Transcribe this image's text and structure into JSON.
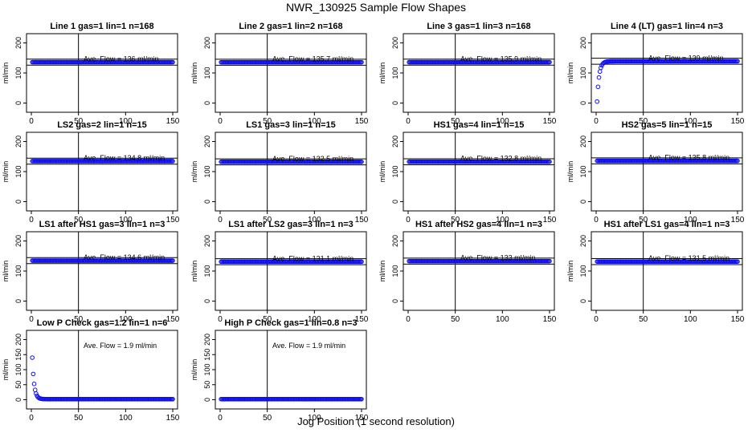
{
  "figure_title": "NWR_130925  Sample Flow Shapes",
  "xlabel_common": "Jog Position (1 second resolution)",
  "colors": {
    "points": "#1010ee",
    "frame": "#000000"
  },
  "chart_data": [
    {
      "type": "scatter",
      "title": "Line 1 gas=1 lin=1 n=168",
      "ylabel": "ml/min",
      "annotation": "Ave. Flow = 136  ml/min",
      "xlim": [
        0,
        150
      ],
      "ylim": [
        0,
        200
      ],
      "xticks": [
        "0",
        "50",
        "100",
        "150"
      ],
      "yticks": [
        "0",
        "100",
        "200"
      ],
      "vline_x": 50,
      "hlines_y": [
        126,
        146
      ],
      "shape": "constant",
      "flow_mean": 136
    },
    {
      "type": "scatter",
      "title": "Line 2 gas=1 lin=2 n=168",
      "ylabel": "ml/min",
      "annotation": "Ave. Flow = 135.7  ml/min",
      "xlim": [
        0,
        150
      ],
      "ylim": [
        0,
        200
      ],
      "xticks": [
        "0",
        "50",
        "100",
        "150"
      ],
      "yticks": [
        "0",
        "100",
        "200"
      ],
      "vline_x": 50,
      "hlines_y": [
        125.7,
        145.7
      ],
      "shape": "constant",
      "flow_mean": 135.7
    },
    {
      "type": "scatter",
      "title": "Line 3 gas=1 lin=3 n=168",
      "ylabel": "ml/min",
      "annotation": "Ave. Flow = 135.9  ml/min",
      "xlim": [
        0,
        150
      ],
      "ylim": [
        0,
        200
      ],
      "xticks": [
        "0",
        "50",
        "100",
        "150"
      ],
      "yticks": [
        "0",
        "100",
        "200"
      ],
      "vline_x": 50,
      "hlines_y": [
        125.9,
        145.9
      ],
      "shape": "constant",
      "flow_mean": 135.9
    },
    {
      "type": "scatter",
      "title": "Line 4 (LT) gas=1 lin=4 n=3",
      "ylabel": "ml/min",
      "annotation": "Ave. Flow = 139  ml/min",
      "xlim": [
        0,
        150
      ],
      "ylim": [
        0,
        200
      ],
      "xticks": [
        "0",
        "50",
        "100",
        "150"
      ],
      "yticks": [
        "0",
        "100",
        "200"
      ],
      "vline_x": 50,
      "hlines_y": [
        129,
        149
      ],
      "shape": "rise",
      "flow_mean": 139,
      "start_value": 5
    },
    {
      "type": "scatter",
      "title": "LS2 gas=2 lin=1 n=15",
      "ylabel": "ml/min",
      "annotation": "Ave. Flow = 134.8  ml/min",
      "xlim": [
        0,
        150
      ],
      "ylim": [
        0,
        200
      ],
      "xticks": [
        "0",
        "50",
        "100",
        "150"
      ],
      "yticks": [
        "0",
        "100",
        "200"
      ],
      "vline_x": 50,
      "hlines_y": [
        124.8,
        144.8
      ],
      "shape": "constant",
      "flow_mean": 134.8
    },
    {
      "type": "scatter",
      "title": "LS1 gas=3 lin=1 n=15",
      "ylabel": "ml/min",
      "annotation": "Ave. Flow = 132.5  ml/min",
      "xlim": [
        0,
        150
      ],
      "ylim": [
        0,
        200
      ],
      "xticks": [
        "0",
        "50",
        "100",
        "150"
      ],
      "yticks": [
        "0",
        "100",
        "200"
      ],
      "vline_x": 50,
      "hlines_y": [
        122.5,
        142.5
      ],
      "shape": "constant",
      "flow_mean": 132.5
    },
    {
      "type": "scatter",
      "title": "HS1 gas=4 lin=1 n=15",
      "ylabel": "ml/min",
      "annotation": "Ave. Flow = 132.8  ml/min",
      "xlim": [
        0,
        150
      ],
      "ylim": [
        0,
        200
      ],
      "xticks": [
        "0",
        "50",
        "100",
        "150"
      ],
      "yticks": [
        "0",
        "100",
        "200"
      ],
      "vline_x": 50,
      "hlines_y": [
        122.8,
        142.8
      ],
      "shape": "constant",
      "flow_mean": 132.8
    },
    {
      "type": "scatter",
      "title": "HS2 gas=5 lin=1 n=15",
      "ylabel": "ml/min",
      "annotation": "Ave. Flow = 135.8  ml/min",
      "xlim": [
        0,
        150
      ],
      "ylim": [
        0,
        200
      ],
      "xticks": [
        "0",
        "50",
        "100",
        "150"
      ],
      "yticks": [
        "0",
        "100",
        "200"
      ],
      "vline_x": 50,
      "hlines_y": [
        125.8,
        145.8
      ],
      "shape": "constant",
      "flow_mean": 135.8
    },
    {
      "type": "scatter",
      "title": "LS1 after HS1 gas=3 lin=1 n=3",
      "ylabel": "ml/min",
      "annotation": "Ave. Flow = 134.6  ml/min",
      "xlim": [
        0,
        150
      ],
      "ylim": [
        0,
        200
      ],
      "xticks": [
        "0",
        "50",
        "100",
        "150"
      ],
      "yticks": [
        "0",
        "100",
        "200"
      ],
      "vline_x": 50,
      "hlines_y": [
        124.6,
        144.6
      ],
      "shape": "constant",
      "flow_mean": 134.6
    },
    {
      "type": "scatter",
      "title": "LS1 after LS2 gas=3 lin=1 n=3",
      "ylabel": "ml/min",
      "annotation": "Ave. Flow = 131.1  ml/min",
      "xlim": [
        0,
        150
      ],
      "ylim": [
        0,
        200
      ],
      "xticks": [
        "0",
        "50",
        "100",
        "150"
      ],
      "yticks": [
        "0",
        "100",
        "200"
      ],
      "vline_x": 50,
      "hlines_y": [
        121.1,
        141.1
      ],
      "shape": "constant",
      "flow_mean": 131.1
    },
    {
      "type": "scatter",
      "title": "HS1 after HS2 gas=4 lin=1 n=3",
      "ylabel": "ml/min",
      "annotation": "Ave. Flow = 133  ml/min",
      "xlim": [
        0,
        150
      ],
      "ylim": [
        0,
        200
      ],
      "xticks": [
        "0",
        "50",
        "100",
        "150"
      ],
      "yticks": [
        "0",
        "100",
        "200"
      ],
      "vline_x": 50,
      "hlines_y": [
        123,
        143
      ],
      "shape": "constant",
      "flow_mean": 133
    },
    {
      "type": "scatter",
      "title": "HS1 after LS1 gas=4 lin=1 n=3",
      "ylabel": "ml/min",
      "annotation": "Ave. Flow = 131.5  ml/min",
      "xlim": [
        0,
        150
      ],
      "ylim": [
        0,
        200
      ],
      "xticks": [
        "0",
        "50",
        "100",
        "150"
      ],
      "yticks": [
        "0",
        "100",
        "200"
      ],
      "vline_x": 50,
      "hlines_y": [
        121.5,
        141.5
      ],
      "shape": "constant",
      "flow_mean": 131.5
    },
    {
      "type": "scatter",
      "title": "Low P Check gas=1.2 lin=1 n=6",
      "ylabel": "ml/min",
      "annotation": "Ave. Flow = 1.9  ml/min",
      "xlim": [
        0,
        150
      ],
      "ylim": [
        0,
        200
      ],
      "xticks": [
        "0",
        "50",
        "100",
        "150"
      ],
      "yticks": [
        "0",
        "50",
        "100",
        "150",
        "200"
      ],
      "vline_x": 50,
      "hlines_y": [],
      "shape": "decay",
      "flow_mean": 1.9,
      "start_value": 140
    },
    {
      "type": "scatter",
      "title": "High P Check gas=1 lin=0.8 n=3",
      "ylabel": "ml/min",
      "annotation": "Ave. Flow = 1.9  ml/min",
      "xlim": [
        0,
        150
      ],
      "ylim": [
        0,
        200
      ],
      "xticks": [
        "0",
        "50",
        "100",
        "150"
      ],
      "yticks": [
        "0",
        "50",
        "100",
        "150",
        "200"
      ],
      "vline_x": 50,
      "hlines_y": [],
      "shape": "constant",
      "flow_mean": 1.9
    }
  ]
}
